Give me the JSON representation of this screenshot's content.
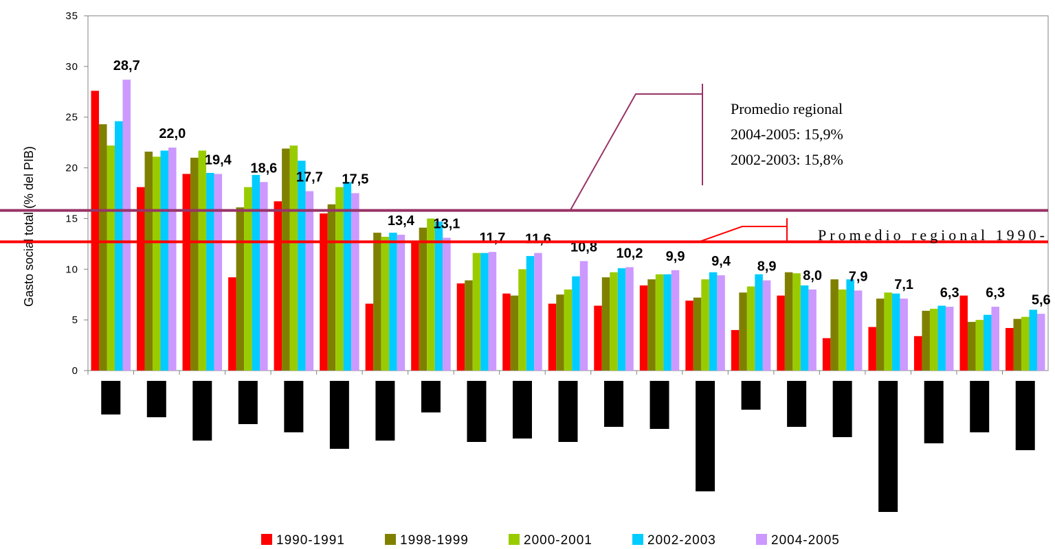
{
  "chart_data": {
    "type": "bar",
    "ylabel": "Gasto social total (% del PIB)",
    "ylim": [
      0,
      35
    ],
    "yticks": [
      0,
      5,
      10,
      15,
      20,
      25,
      30,
      35
    ],
    "grid": false,
    "legend_position": "bottom",
    "series": [
      {
        "name": "1990-1991",
        "color": "#ff0000",
        "values": [
          27.6,
          18.1,
          19.4,
          9.2,
          16.7,
          15.5,
          6.6,
          12.8,
          8.6,
          7.6,
          6.6,
          6.4,
          8.4,
          6.9,
          4.0,
          7.4,
          3.2,
          4.3,
          3.4,
          7.4,
          4.2
        ]
      },
      {
        "name": "1998-1999",
        "color": "#808000",
        "values": [
          24.3,
          21.6,
          21.0,
          16.1,
          21.9,
          16.4,
          13.6,
          14.1,
          8.9,
          7.4,
          7.5,
          9.2,
          9.0,
          7.2,
          7.7,
          9.7,
          9.0,
          7.1,
          5.9,
          4.8,
          5.1
        ]
      },
      {
        "name": "2000-2001",
        "color": "#99cc00",
        "values": [
          22.2,
          21.1,
          21.7,
          18.1,
          22.2,
          18.1,
          13.2,
          15.0,
          11.6,
          10.0,
          8.0,
          9.7,
          9.5,
          9.0,
          8.3,
          9.6,
          8.0,
          7.7,
          6.1,
          5.0,
          5.3
        ]
      },
      {
        "name": "2002-2003",
        "color": "#00ccff",
        "values": [
          24.6,
          21.7,
          19.5,
          19.3,
          20.7,
          18.6,
          13.6,
          14.7,
          11.6,
          11.3,
          9.3,
          10.1,
          9.5,
          9.7,
          9.5,
          8.4,
          9.0,
          7.6,
          6.4,
          5.5,
          6.0
        ]
      },
      {
        "name": "2004-2005",
        "color": "#cc99ff",
        "values": [
          28.7,
          22.0,
          19.4,
          18.6,
          17.7,
          17.5,
          13.4,
          13.1,
          11.7,
          11.6,
          10.8,
          10.2,
          9.9,
          9.4,
          8.9,
          8.0,
          7.9,
          7.1,
          6.3,
          6.3,
          5.6
        ]
      }
    ],
    "data_labels": [
      "28,7",
      "22,0",
      "19,4",
      "18,6",
      "17,7",
      "17,5",
      "13,4",
      "13,1",
      "11,7",
      "11,6",
      "10,8",
      "10,2",
      "9,9",
      "9,4",
      "8,9",
      "8,0",
      "7,9",
      "7,1",
      "6,3",
      "6,3",
      "5,6"
    ],
    "reference_lines": [
      {
        "value": 15.8,
        "color": "#993366"
      },
      {
        "value": 12.7,
        "color": "#ff0000"
      }
    ],
    "annotations": [
      {
        "lines": [
          "Promedio regional",
          "2004-2005: 15,9%",
          "2002-2003: 15,8%"
        ]
      },
      {
        "lines": [
          "Promedio regional 1990-"
        ]
      }
    ]
  }
}
